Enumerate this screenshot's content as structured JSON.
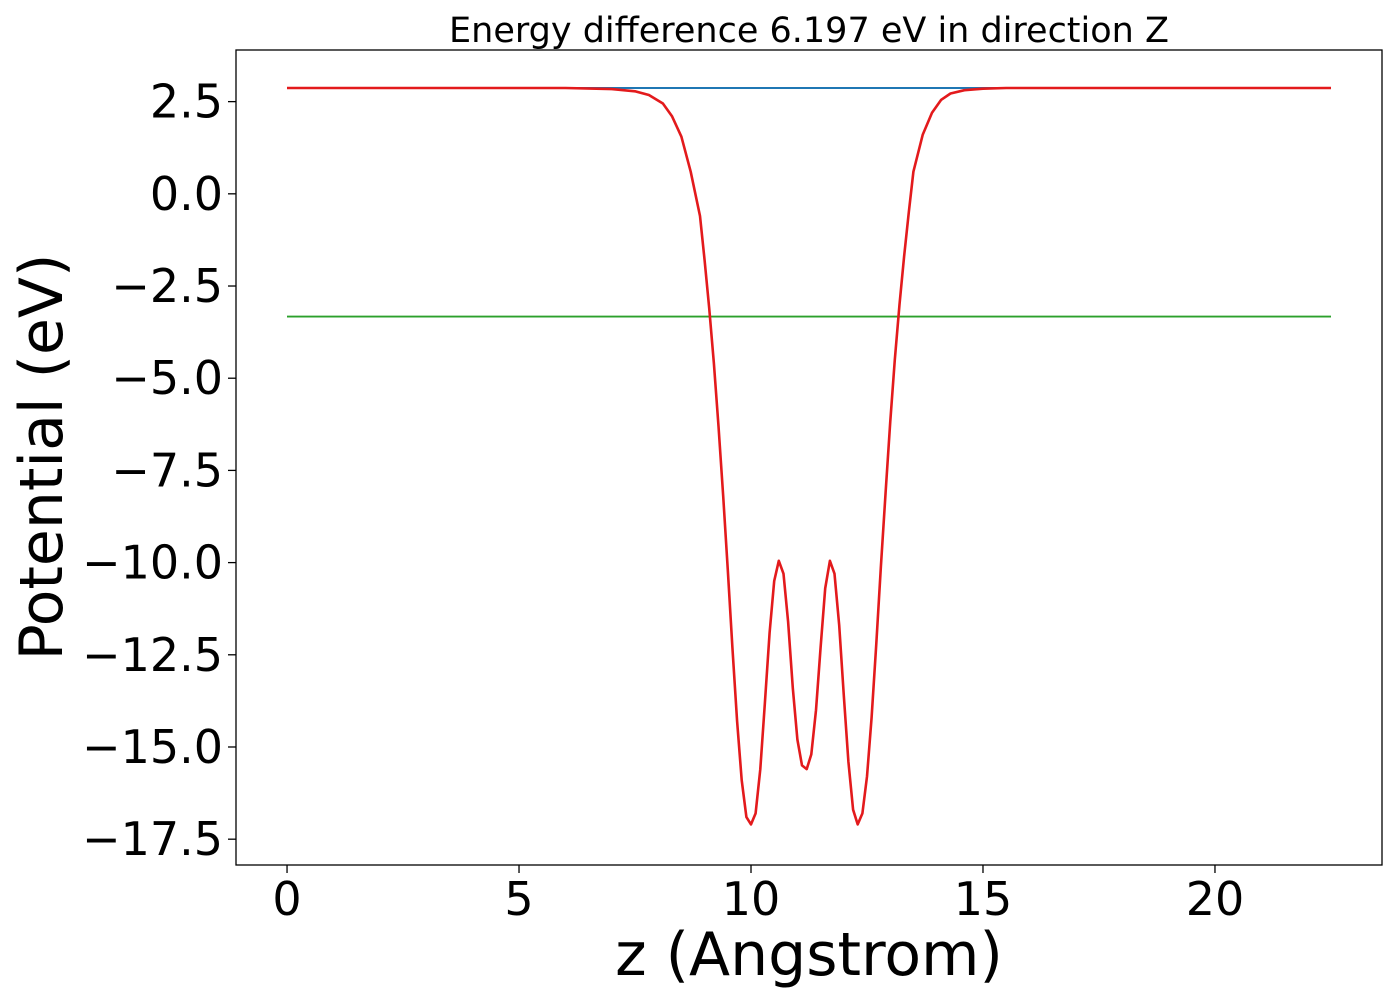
{
  "chart_data": {
    "type": "line",
    "title": "Energy difference 6.197 eV in direction Z",
    "xlabel": "z (Angstrom)",
    "ylabel": "Potential (eV)",
    "xlim": [
      -1.1,
      23.6
    ],
    "ylim": [
      -18.2,
      3.9
    ],
    "xticks": [
      0,
      5,
      10,
      15,
      20
    ],
    "xtick_labels": [
      "0",
      "5",
      "10",
      "15",
      "20"
    ],
    "yticks": [
      2.5,
      0.0,
      -2.5,
      -5.0,
      -7.5,
      -10.0,
      -12.5,
      -15.0,
      -17.5
    ],
    "ytick_labels": [
      "2.5",
      "0.0",
      "−2.5",
      "−5.0",
      "−7.5",
      "−10.0",
      "−12.5",
      "−15.0",
      "−17.5"
    ],
    "grid": false,
    "series": [
      {
        "color": "#1f77b4",
        "x": [
          0,
          22.5
        ],
        "y": [
          2.87,
          2.87
        ]
      },
      {
        "color": "#2ca02c",
        "x": [
          0,
          22.5
        ],
        "y": [
          -3.33,
          -3.33
        ]
      },
      {
        "color": "#e31a1c",
        "x": [
          0,
          6.0,
          7.0,
          7.5,
          7.8,
          8.1,
          8.3,
          8.5,
          8.7,
          8.9,
          9.0,
          9.1,
          9.2,
          9.3,
          9.4,
          9.5,
          9.6,
          9.7,
          9.8,
          9.9,
          10.0,
          10.1,
          10.2,
          10.3,
          10.4,
          10.5,
          10.6,
          10.7,
          10.8,
          10.9,
          11.0,
          11.1,
          11.2,
          11.3,
          11.4,
          11.5,
          11.6,
          11.7,
          11.8,
          11.9,
          12.0,
          12.1,
          12.2,
          12.3,
          12.4,
          12.5,
          12.6,
          12.7,
          12.8,
          12.9,
          13.0,
          13.1,
          13.2,
          13.3,
          13.4,
          13.5,
          13.7,
          13.9,
          14.1,
          14.3,
          14.6,
          15.0,
          15.5,
          16.5,
          22.5
        ],
        "y": [
          2.87,
          2.87,
          2.84,
          2.78,
          2.68,
          2.45,
          2.1,
          1.55,
          0.6,
          -0.6,
          -1.8,
          -3.1,
          -4.6,
          -6.3,
          -8.2,
          -10.2,
          -12.3,
          -14.3,
          -15.9,
          -16.9,
          -17.1,
          -16.8,
          -15.6,
          -13.8,
          -11.9,
          -10.5,
          -9.95,
          -10.3,
          -11.6,
          -13.4,
          -14.8,
          -15.5,
          -15.6,
          -15.2,
          -14.0,
          -12.3,
          -10.7,
          -9.95,
          -10.3,
          -11.7,
          -13.6,
          -15.4,
          -16.7,
          -17.1,
          -16.8,
          -15.8,
          -14.2,
          -12.2,
          -10.1,
          -8.1,
          -6.2,
          -4.5,
          -3.0,
          -1.7,
          -0.5,
          0.6,
          1.6,
          2.2,
          2.55,
          2.72,
          2.81,
          2.85,
          2.87,
          2.87,
          2.87
        ]
      }
    ]
  }
}
